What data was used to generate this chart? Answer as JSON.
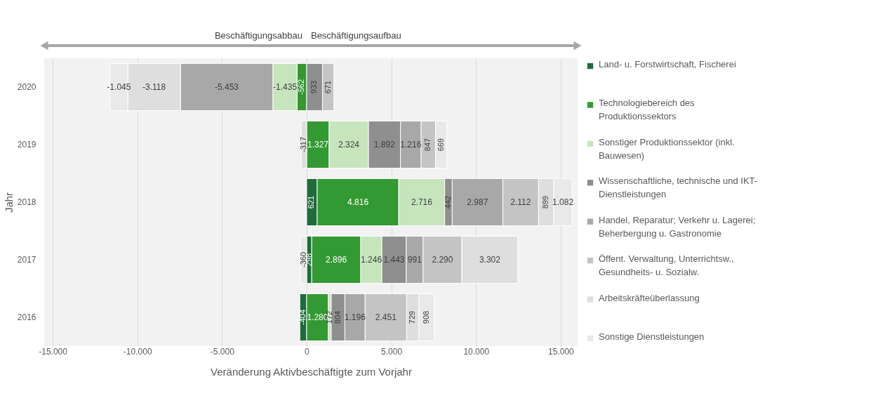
{
  "chart_data": {
    "type": "bar",
    "orientation": "horizontal",
    "stacked": true,
    "xlabel": "Veränderung Aktivbeschäftigte zum Vorjahr",
    "ylabel": "Jahr",
    "categories": [
      "2020",
      "2019",
      "2018",
      "2017",
      "2016"
    ],
    "series": [
      {
        "name": "Land- u. Forstwirtschaft, Fischerei",
        "color": "#1e6b3c",
        "values": [
          null,
          null,
          621,
          298,
          -404
        ],
        "value_labels": [
          null,
          null,
          "621",
          "298",
          "-404"
        ]
      },
      {
        "name": "Technologiebereich des Produktionssektors",
        "color": "#339933",
        "values": [
          -562,
          1327,
          4816,
          2896,
          1280
        ],
        "value_labels": [
          "-562",
          "1.327",
          "4.816",
          "2.896",
          "1.280"
        ]
      },
      {
        "name": "Sonstiger Produktionssektor (inkl. Bauwesen)",
        "color": "#c6e5bd",
        "values": [
          -1435,
          2324,
          2716,
          1246,
          172
        ],
        "value_labels": [
          "-1.435",
          "2.324",
          "2.716",
          "1.246",
          "172"
        ]
      },
      {
        "name": "Wissenschaftliche, technische und IKT-Dienstleistungen",
        "color": "#8f8f8f",
        "values": [
          933,
          1892,
          442,
          1443,
          804
        ],
        "value_labels": [
          "933",
          "1.892",
          "442",
          "1.443",
          "804"
        ]
      },
      {
        "name": "Handel, Reparatur; Verkehr u. Lagerei; Beherbergung u. Gastronomie",
        "color": "#a8a8a8",
        "values": [
          -5453,
          1216,
          2987,
          991,
          1196
        ],
        "value_labels": [
          "-5.453",
          "1.216",
          "2.987",
          "991",
          "1.196"
        ]
      },
      {
        "name": "Öffent. Verwaltung, Unterrichtsw., Gesundheits- u. Sozialw.",
        "color": "#c4c4c4",
        "values": [
          671,
          847,
          2112,
          2290,
          2451
        ],
        "value_labels": [
          "671",
          "847",
          "2.112",
          "2.290",
          "2.451"
        ]
      },
      {
        "name": "Arbeitskräfteüberlassung",
        "color": "#dedede",
        "values": [
          -3118,
          -317,
          899,
          3302,
          729
        ],
        "value_labels": [
          "-3.118",
          "-317",
          "899",
          "3.302",
          "729"
        ]
      },
      {
        "name": "Sonstige Dienstleistungen",
        "color": "#e9e9e9",
        "values": [
          -1045,
          669,
          1082,
          -360,
          908
        ],
        "value_labels": [
          "-1.045",
          "669",
          "1.082",
          "-360",
          "908"
        ]
      }
    ],
    "xlim": [
      -15500,
      16000
    ],
    "xticks": [
      {
        "value": -15000,
        "label": "-15.000"
      },
      {
        "value": -10000,
        "label": "-10.000"
      },
      {
        "value": -5000,
        "label": "-5.000"
      },
      0,
      {
        "value": 5000,
        "label": "5.000"
      },
      {
        "value": 10000,
        "label": "10.000"
      },
      {
        "value": 15000,
        "label": "15.000"
      }
    ],
    "grid": "x",
    "legend": "right",
    "annotations": [
      "Beschäftigungsabbau",
      "Beschäftigungsaufbau"
    ]
  }
}
